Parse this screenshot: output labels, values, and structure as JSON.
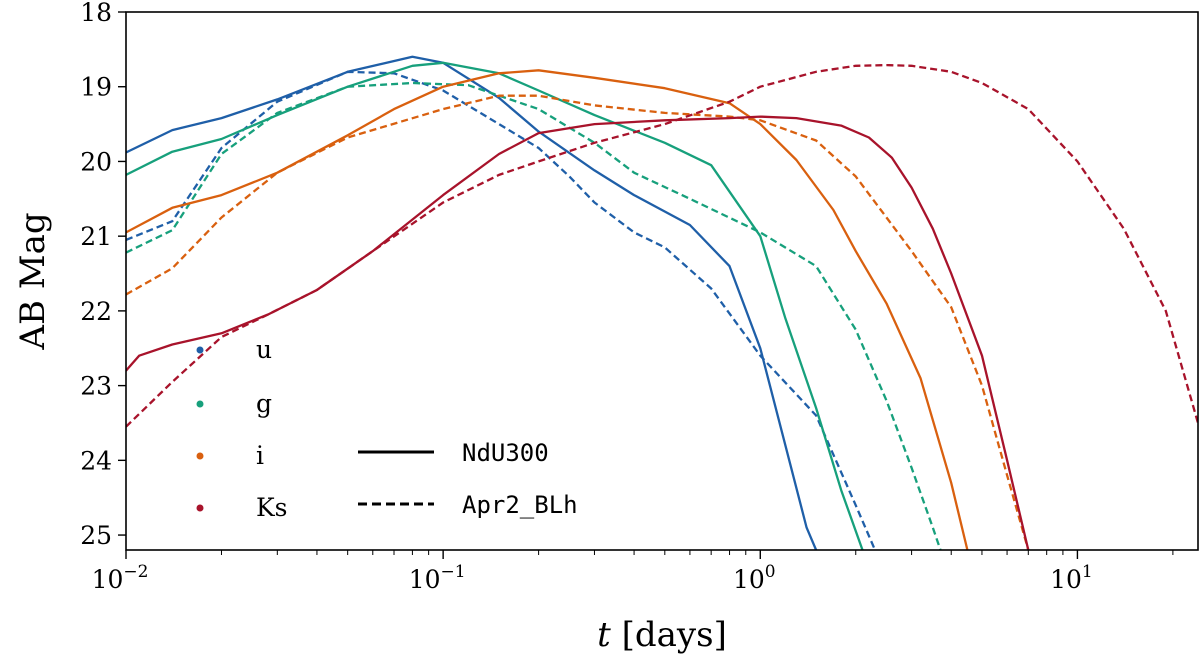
{
  "chart_data": {
    "type": "line",
    "title": "",
    "xlabel_var": "t",
    "xlabel_unit": "[days]",
    "ylabel": "AB Mag",
    "xscale": "log",
    "xlim": [
      0.01,
      24
    ],
    "ylim": [
      25.2,
      18
    ],
    "y_inverted": true,
    "xticks": [
      {
        "value": 0.01,
        "base": "10",
        "exp": "−2"
      },
      {
        "value": 0.1,
        "base": "10",
        "exp": "−1"
      },
      {
        "value": 1,
        "base": "10",
        "exp": "0"
      },
      {
        "value": 10,
        "base": "10",
        "exp": "1"
      }
    ],
    "yticks": [
      "18",
      "19",
      "20",
      "21",
      "22",
      "23",
      "24",
      "25"
    ],
    "grid": false,
    "legend_bands": [
      {
        "label": "u",
        "color": "#1f5fa8"
      },
      {
        "label": "g",
        "color": "#17a07c"
      },
      {
        "label": "i",
        "color": "#d9600f"
      },
      {
        "label": "Ks",
        "color": "#a8132b"
      }
    ],
    "legend_models": [
      {
        "label": "NdU300",
        "dash": "solid"
      },
      {
        "label": "Apr2_BLh",
        "dash": "dashed"
      }
    ],
    "series": [
      {
        "name": "u NdU300",
        "band": "u",
        "model": "NdU300",
        "color": "#1f5fa8",
        "dash": "solid",
        "x": [
          0.01,
          0.014,
          0.02,
          0.03,
          0.05,
          0.08,
          0.1,
          0.15,
          0.2,
          0.3,
          0.4,
          0.6,
          0.8,
          1.0,
          1.2,
          1.4,
          1.5
        ],
        "y": [
          19.88,
          19.58,
          19.42,
          19.17,
          18.8,
          18.6,
          18.68,
          19.15,
          19.6,
          20.12,
          20.45,
          20.85,
          21.4,
          22.5,
          23.8,
          24.9,
          25.2
        ]
      },
      {
        "name": "u Apr2_BLh",
        "band": "u",
        "model": "Apr2_BLh",
        "color": "#1f5fa8",
        "dash": "dashed",
        "x": [
          0.01,
          0.014,
          0.02,
          0.03,
          0.05,
          0.07,
          0.1,
          0.15,
          0.2,
          0.25,
          0.3,
          0.4,
          0.5,
          0.7,
          1.0,
          1.5,
          2.0,
          2.3
        ],
        "y": [
          21.05,
          20.8,
          19.82,
          19.2,
          18.8,
          18.82,
          19.05,
          19.5,
          19.82,
          20.2,
          20.55,
          20.95,
          21.15,
          21.7,
          22.6,
          23.4,
          24.6,
          25.2
        ]
      },
      {
        "name": "g NdU300",
        "band": "g",
        "model": "NdU300",
        "color": "#17a07c",
        "dash": "solid",
        "x": [
          0.01,
          0.014,
          0.02,
          0.03,
          0.05,
          0.08,
          0.1,
          0.15,
          0.2,
          0.3,
          0.5,
          0.7,
          1.0,
          1.2,
          1.5,
          1.8,
          2.1
        ],
        "y": [
          20.18,
          19.87,
          19.7,
          19.38,
          19.0,
          18.72,
          18.68,
          18.82,
          19.05,
          19.38,
          19.75,
          20.05,
          21.0,
          22.1,
          23.3,
          24.4,
          25.2
        ]
      },
      {
        "name": "g Apr2_BLh",
        "band": "g",
        "model": "Apr2_BLh",
        "color": "#17a07c",
        "dash": "dashed",
        "x": [
          0.01,
          0.014,
          0.02,
          0.03,
          0.05,
          0.08,
          0.12,
          0.2,
          0.3,
          0.4,
          0.6,
          1.0,
          1.5,
          2.0,
          2.5,
          3.0,
          3.5,
          3.7
        ],
        "y": [
          21.22,
          20.92,
          19.9,
          19.35,
          19.0,
          18.95,
          18.98,
          19.3,
          19.75,
          20.15,
          20.5,
          20.95,
          21.4,
          22.25,
          23.2,
          24.1,
          24.9,
          25.2
        ]
      },
      {
        "name": "i NdU300",
        "band": "i",
        "model": "NdU300",
        "color": "#d9600f",
        "dash": "solid",
        "x": [
          0.01,
          0.014,
          0.02,
          0.03,
          0.05,
          0.07,
          0.1,
          0.15,
          0.2,
          0.3,
          0.5,
          0.8,
          1.0,
          1.3,
          1.7,
          2.0,
          2.5,
          3.2,
          4.0,
          4.5
        ],
        "y": [
          20.95,
          20.62,
          20.45,
          20.15,
          19.65,
          19.3,
          19.0,
          18.82,
          18.78,
          18.88,
          19.02,
          19.22,
          19.5,
          19.98,
          20.65,
          21.2,
          21.9,
          22.9,
          24.3,
          25.2
        ]
      },
      {
        "name": "i Apr2_BLh",
        "band": "i",
        "model": "Apr2_BLh",
        "color": "#d9600f",
        "dash": "dashed",
        "x": [
          0.01,
          0.014,
          0.02,
          0.03,
          0.05,
          0.1,
          0.15,
          0.2,
          0.3,
          0.5,
          0.8,
          1.0,
          1.5,
          2.0,
          2.5,
          3.0,
          4.0,
          5.0,
          6.0,
          7.0
        ],
        "y": [
          21.78,
          21.43,
          20.75,
          20.15,
          19.68,
          19.3,
          19.12,
          19.12,
          19.25,
          19.35,
          19.4,
          19.45,
          19.72,
          20.2,
          20.75,
          21.2,
          21.95,
          23.0,
          24.2,
          25.2
        ]
      },
      {
        "name": "Ks NdU300",
        "band": "Ks",
        "model": "NdU300",
        "color": "#a8132b",
        "dash": "solid",
        "x": [
          0.01,
          0.011,
          0.014,
          0.02,
          0.028,
          0.04,
          0.06,
          0.1,
          0.15,
          0.2,
          0.3,
          0.5,
          0.8,
          1.0,
          1.3,
          1.8,
          2.2,
          2.6,
          3.0,
          3.5,
          4.0,
          5.0,
          6.0,
          7.0
        ],
        "y": [
          22.8,
          22.6,
          22.45,
          22.3,
          22.05,
          21.72,
          21.2,
          20.45,
          19.9,
          19.62,
          19.5,
          19.45,
          19.42,
          19.4,
          19.42,
          19.52,
          19.68,
          19.95,
          20.35,
          20.9,
          21.5,
          22.6,
          24.0,
          25.2
        ]
      },
      {
        "name": "Ks Apr2_BLh",
        "band": "Ks",
        "model": "Apr2_BLh",
        "color": "#a8132b",
        "dash": "dashed",
        "x": [
          0.01,
          0.014,
          0.02,
          0.028,
          0.04,
          0.06,
          0.1,
          0.15,
          0.2,
          0.3,
          0.5,
          0.8,
          1.0,
          1.5,
          2.0,
          2.5,
          3.0,
          4.0,
          5.0,
          7.0,
          10.0,
          14.0,
          19.0,
          24.0
        ],
        "y": [
          23.55,
          22.95,
          22.35,
          22.05,
          21.72,
          21.2,
          20.55,
          20.18,
          20.0,
          19.75,
          19.5,
          19.2,
          19.0,
          18.8,
          18.72,
          18.71,
          18.72,
          18.8,
          18.95,
          19.3,
          20.0,
          20.9,
          22.0,
          23.5
        ]
      }
    ]
  }
}
